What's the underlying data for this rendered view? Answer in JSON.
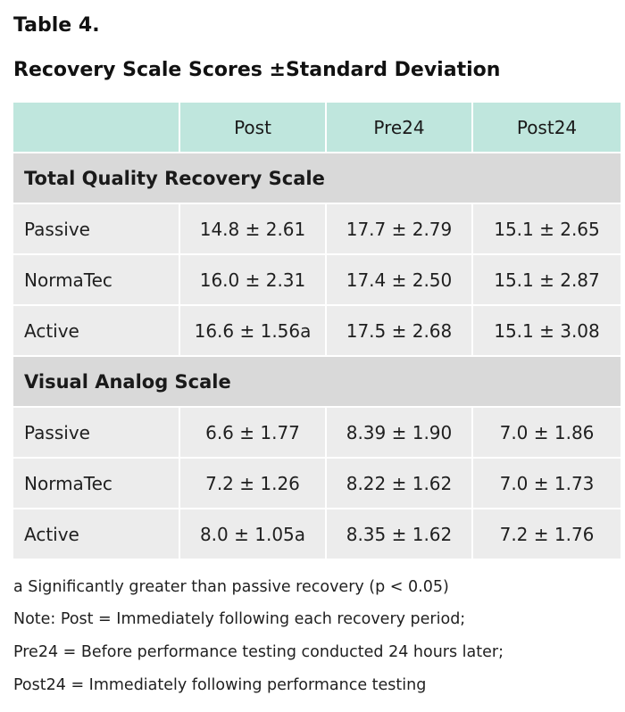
{
  "label": "Table 4.",
  "title": "Recovery Scale Scores ±Standard Deviation",
  "header": [
    "",
    "Post",
    "Pre24",
    "Post24"
  ],
  "sections": [
    {
      "title": "Total Quality Recovery Scale",
      "rows": [
        {
          "label": "Passive",
          "post": "14.8 ± 2.61",
          "pre24": "17.7 ± 2.79",
          "post24": "15.1 ± 2.65"
        },
        {
          "label": "NormaTec",
          "post": "16.0 ± 2.31",
          "pre24": "17.4 ± 2.50",
          "post24": "15.1 ± 2.87"
        },
        {
          "label": "Active",
          "post": "16.6 ± 1.56a",
          "pre24": "17.5 ± 2.68",
          "post24": "15.1 ± 3.08"
        }
      ]
    },
    {
      "title": "Visual Analog Scale",
      "rows": [
        {
          "label": "Passive",
          "post": "6.6 ± 1.77",
          "pre24": "8.39 ± 1.90",
          "post24": "7.0 ± 1.86"
        },
        {
          "label": "NormaTec",
          "post": "7.2 ± 1.26",
          "pre24": "8.22 ± 1.62",
          "post24": "7.0 ± 1.73"
        },
        {
          "label": "Active",
          "post": "8.0 ± 1.05a",
          "pre24": "8.35 ± 1.62",
          "post24": "7.2 ± 1.76"
        }
      ]
    }
  ],
  "notes": [
    "a Significantly greater than passive recovery (p < 0.05)",
    "Note: Post = Immediately following each recovery period;",
    "Pre24 = Before performance testing conducted 24 hours later;",
    "Post24 = Immediately following performance testing"
  ]
}
